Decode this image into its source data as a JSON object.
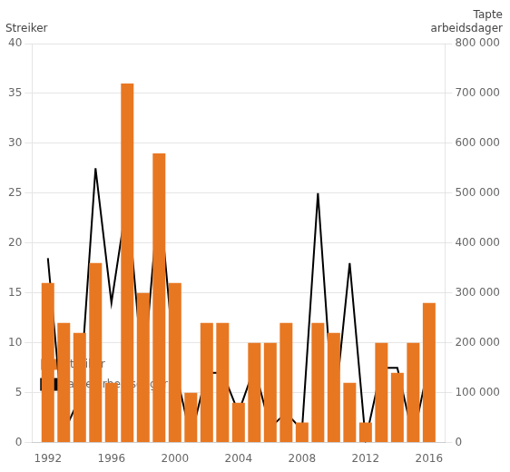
{
  "chart_data": {
    "type": "bar",
    "x": [
      1992,
      1993,
      1994,
      1995,
      1996,
      1997,
      1998,
      1999,
      2000,
      2001,
      2002,
      2003,
      2004,
      2005,
      2006,
      2007,
      2008,
      2009,
      2010,
      2011,
      2012,
      2013,
      2014,
      2015,
      2016
    ],
    "series": [
      {
        "name": "Streiker",
        "type": "bar",
        "color": "#E87722",
        "values": [
          16,
          12,
          11,
          18,
          6,
          36,
          15,
          29,
          16,
          5,
          12,
          12,
          4,
          10,
          10,
          12,
          2,
          12,
          11,
          6,
          2,
          10,
          7,
          10,
          14
        ]
      },
      {
        "name": "Tapte arbeidsdager",
        "type": "line",
        "color": "#000000",
        "axis": "y2",
        "values": [
          370000,
          20000,
          90000,
          550000,
          280000,
          490000,
          130000,
          500000,
          150000,
          10000,
          140000,
          140000,
          60000,
          150000,
          30000,
          60000,
          25000,
          500000,
          50000,
          360000,
          5000,
          150000,
          150000,
          10000,
          160000
        ]
      }
    ],
    "xlim": [
      1991,
      2017
    ],
    "xticks": [
      1992,
      1996,
      2000,
      2004,
      2008,
      2012,
      2016
    ],
    "ylim": [
      0,
      40
    ],
    "yticks": [
      0,
      5,
      10,
      15,
      20,
      25,
      30,
      35,
      40
    ],
    "y2lim": [
      0,
      800000
    ],
    "y2ticks": [
      0,
      {
        "value": 100000,
        "label": "100 000"
      },
      {
        "value": 200000,
        "label": "200 000"
      },
      {
        "value": 300000,
        "label": "300 000"
      },
      {
        "value": 400000,
        "label": "400 000"
      },
      {
        "value": 500000,
        "label": "500 000"
      },
      {
        "value": 600000,
        "label": "600 000"
      },
      {
        "value": 700000,
        "label": "700 000"
      },
      {
        "value": 800000,
        "label": "800 000"
      }
    ],
    "ylabel": "Streiker",
    "y2label": "Tapte\narbeidsdager",
    "grid": true,
    "legend": "upper right"
  }
}
